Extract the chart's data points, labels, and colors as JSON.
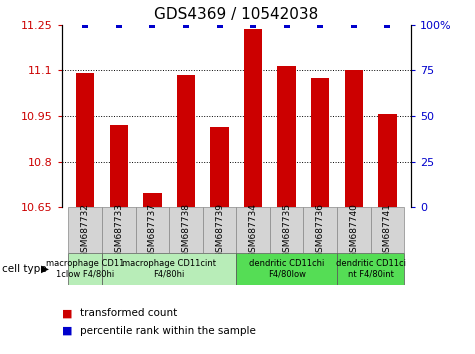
{
  "title": "GDS4369 / 10542038",
  "samples": [
    "GSM687732",
    "GSM687733",
    "GSM687737",
    "GSM687738",
    "GSM687739",
    "GSM687734",
    "GSM687735",
    "GSM687736",
    "GSM687740",
    "GSM687741"
  ],
  "red_values": [
    11.09,
    10.92,
    10.695,
    11.085,
    10.915,
    11.235,
    11.115,
    11.075,
    11.1,
    10.955
  ],
  "blue_values": [
    100,
    100,
    100,
    100,
    100,
    100,
    100,
    100,
    100,
    100
  ],
  "ylim_left": [
    10.65,
    11.25
  ],
  "ylim_right": [
    0,
    100
  ],
  "yticks_left": [
    10.65,
    10.8,
    10.95,
    11.1,
    11.25
  ],
  "ytick_labels_left": [
    "10.65",
    "10.8",
    "10.95",
    "11.1",
    "11.25"
  ],
  "yticks_right": [
    0,
    25,
    50,
    75,
    100
  ],
  "ytick_labels_right": [
    "0",
    "25",
    "50",
    "75",
    "100%"
  ],
  "grid_yticks": [
    10.8,
    10.95,
    11.1
  ],
  "bar_color": "#cc0000",
  "blue_color": "#0000cc",
  "bar_width": 0.55,
  "blue_marker_size": 5,
  "tick_color_left": "#cc0000",
  "tick_color_right": "#0000cc",
  "legend_red_label": "transformed count",
  "legend_blue_label": "percentile rank within the sample",
  "cell_type_label": "cell type",
  "bar_bottom": 10.65,
  "groups": [
    {
      "indices": [
        0
      ],
      "label": "macrophage CD11\n1clow F4/80hi",
      "color": "#b8edb8"
    },
    {
      "indices": [
        1,
        2,
        3,
        4
      ],
      "label": "macrophage CD11cint\nF4/80hi",
      "color": "#b8edb8"
    },
    {
      "indices": [
        5,
        6,
        7
      ],
      "label": "dendritic CD11chi\nF4/80low",
      "color": "#55dd55"
    },
    {
      "indices": [
        8,
        9
      ],
      "label": "dendritic CD11ci\nnt F4/80int",
      "color": "#55dd55"
    }
  ]
}
